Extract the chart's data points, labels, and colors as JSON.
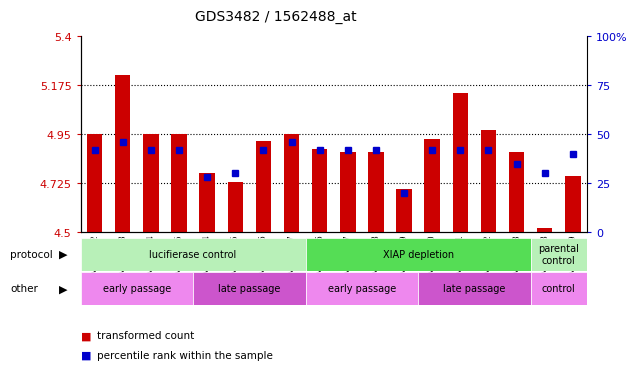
{
  "title": "GDS3482 / 1562488_at",
  "samples": [
    "GSM294802",
    "GSM294803",
    "GSM294804",
    "GSM294805",
    "GSM294814",
    "GSM294815",
    "GSM294816",
    "GSM294817",
    "GSM294806",
    "GSM294807",
    "GSM294808",
    "GSM294809",
    "GSM294810",
    "GSM294811",
    "GSM294812",
    "GSM294813",
    "GSM294818",
    "GSM294819"
  ],
  "red_values": [
    4.95,
    5.22,
    4.95,
    4.95,
    4.77,
    4.73,
    4.92,
    4.95,
    4.88,
    4.87,
    4.87,
    4.7,
    4.93,
    5.14,
    4.97,
    4.87,
    4.52,
    4.76
  ],
  "blue_values_pct": [
    42,
    46,
    42,
    42,
    28,
    30,
    42,
    46,
    42,
    42,
    42,
    20,
    42,
    42,
    42,
    35,
    30,
    40
  ],
  "ylim": [
    4.5,
    5.4
  ],
  "y_ticks": [
    4.5,
    4.725,
    4.95,
    5.175,
    5.4
  ],
  "y_tick_labels": [
    "4.5",
    "4.725",
    "4.95",
    "5.175",
    "5.4"
  ],
  "right_yticks": [
    0,
    25,
    50,
    75,
    100
  ],
  "right_ytick_labels": [
    "0",
    "25",
    "50",
    "75",
    "100%"
  ],
  "bar_color": "#cc0000",
  "blue_color": "#0000cc",
  "bar_bottom": 4.5,
  "protocol_groups": [
    {
      "label": "lucifierase control",
      "start": 0,
      "end": 8,
      "color": "#b8f0b8"
    },
    {
      "label": "XIAP depletion",
      "start": 8,
      "end": 16,
      "color": "#55dd55"
    },
    {
      "label": "parental\ncontrol",
      "start": 16,
      "end": 18,
      "color": "#b8f0b8"
    }
  ],
  "other_groups": [
    {
      "label": "early passage",
      "start": 0,
      "end": 4,
      "color": "#ee88ee"
    },
    {
      "label": "late passage",
      "start": 4,
      "end": 8,
      "color": "#cc55cc"
    },
    {
      "label": "early passage",
      "start": 8,
      "end": 12,
      "color": "#ee88ee"
    },
    {
      "label": "late passage",
      "start": 12,
      "end": 16,
      "color": "#cc55cc"
    },
    {
      "label": "control",
      "start": 16,
      "end": 18,
      "color": "#ee88ee"
    }
  ],
  "legend_items": [
    {
      "label": "transformed count",
      "color": "#cc0000"
    },
    {
      "label": "percentile rank within the sample",
      "color": "#0000cc"
    }
  ],
  "left_label_color": "#cc0000",
  "right_label_color": "#0000cc"
}
